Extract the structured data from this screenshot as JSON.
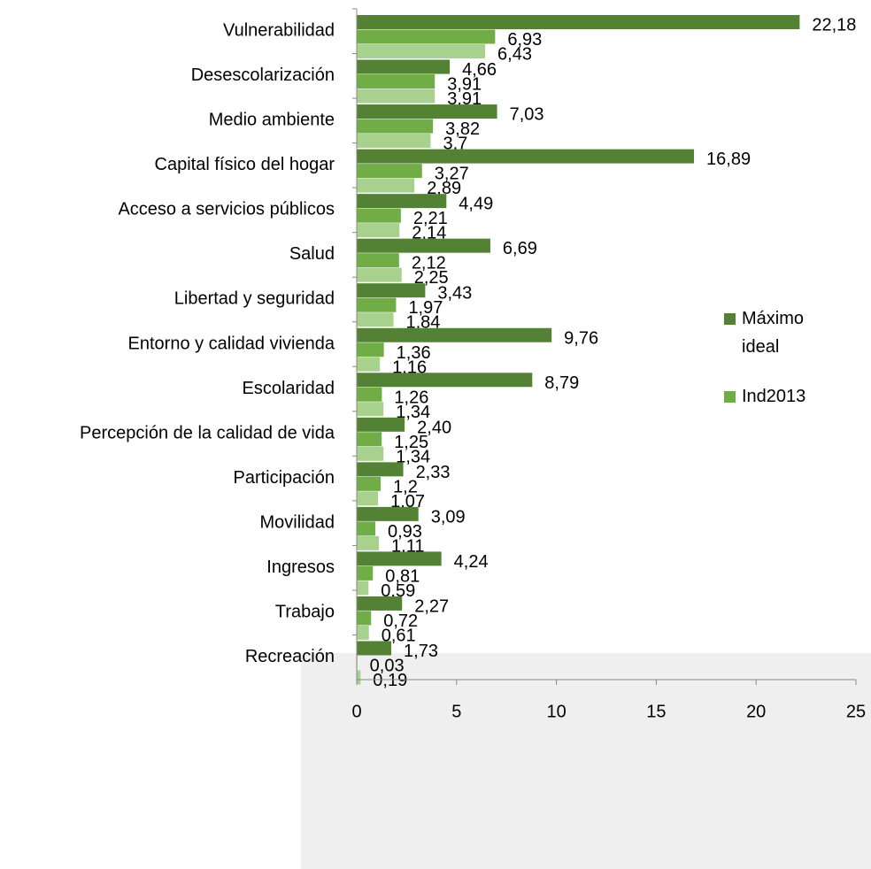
{
  "chart_data": {
    "type": "hbar",
    "categories": [
      "Vulnerabilidad",
      "Desescolarización",
      "Medio ambiente",
      "Capital físico del hogar",
      "Acceso a servicios públicos",
      "Salud",
      "Libertad y seguridad",
      "Entorno y calidad vivienda",
      "Escolaridad",
      "Percepción de la calidad de vida",
      "Participación",
      "Movilidad",
      "Ingresos",
      "Trabajo",
      "Recreación"
    ],
    "series": [
      {
        "name": "Máximo ideal",
        "color": "#548235",
        "values": [
          22.18,
          4.66,
          7.03,
          16.89,
          4.49,
          6.69,
          3.43,
          9.76,
          8.79,
          2.4,
          2.33,
          3.09,
          4.24,
          2.27,
          1.73
        ],
        "value_labels": [
          "22,18",
          "4,66",
          "7,03",
          "16,89",
          "4,49",
          "6,69",
          "3,43",
          "9,76",
          "8,79",
          "2,40",
          "2,33",
          "3,09",
          "4,24",
          "2,27",
          "1,73"
        ]
      },
      {
        "name": "Ind2013",
        "color": "#70ad47",
        "values": [
          6.93,
          3.91,
          3.82,
          3.27,
          2.21,
          2.12,
          1.97,
          1.36,
          1.26,
          1.25,
          1.2,
          0.93,
          0.81,
          0.72,
          0.03
        ],
        "value_labels": [
          "6,93",
          "3,91",
          "3,82",
          "3,27",
          "2,21",
          "2,12",
          "1,97",
          "1,36",
          "1,26",
          "1,25",
          "1,2",
          "0,93",
          "0,81",
          "0,72",
          "0,03"
        ]
      },
      {
        "color": "#a9d18e",
        "values": [
          6.43,
          3.91,
          3.7,
          2.89,
          2.14,
          2.25,
          1.84,
          1.16,
          1.34,
          1.34,
          1.07,
          1.11,
          0.59,
          0.61,
          0.19
        ],
        "value_labels": [
          "6,43",
          "3,91",
          "3,7",
          "2,89",
          "2,14",
          "2,25",
          "1,84",
          "1,16",
          "1,34",
          "1,34",
          "1,07",
          "1,11",
          "0,59",
          "0,61",
          "0,19"
        ]
      }
    ],
    "xlim": [
      0,
      25
    ],
    "xticks": [
      0,
      5,
      10,
      15,
      20,
      25
    ],
    "legend": "right"
  }
}
